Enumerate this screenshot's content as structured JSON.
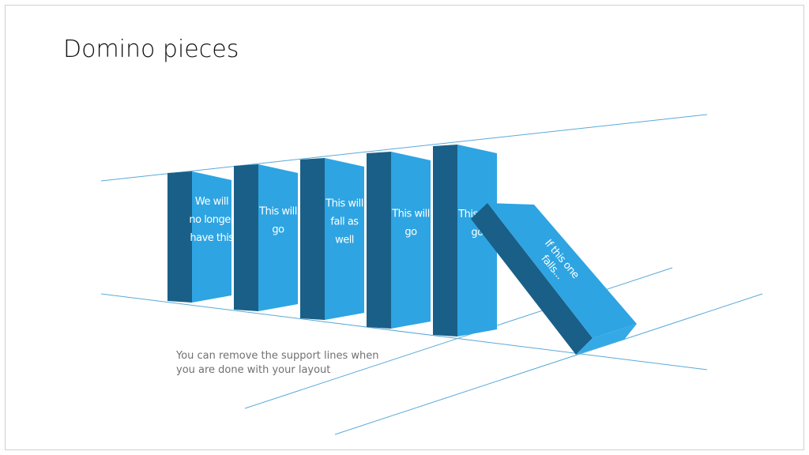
{
  "title": "Domino pieces",
  "dominoes": [
    {
      "lines": [
        "We will",
        "no longer",
        "have this"
      ]
    },
    {
      "lines": [
        "This will",
        "go"
      ]
    },
    {
      "lines": [
        "This will",
        "fall as",
        "well"
      ]
    },
    {
      "lines": [
        "This will",
        "go"
      ]
    },
    {
      "lines": [
        "This will",
        "go"
      ]
    }
  ],
  "falling_domino": {
    "lines": [
      "If this one",
      "falls..."
    ]
  },
  "note": {
    "lines": [
      "You can remove the support lines when",
      "you are done with your layout"
    ]
  }
}
